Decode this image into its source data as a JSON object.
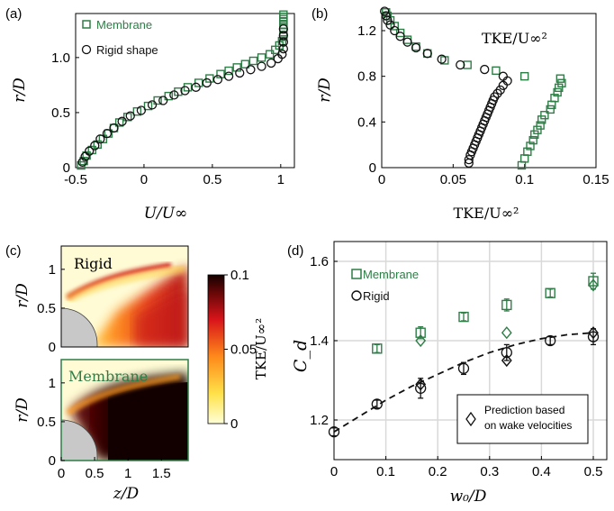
{
  "colors": {
    "membrane": "#2e7d46",
    "rigid": "#111111",
    "grid": "#d9d9d9",
    "wall": "#c8c8c8"
  },
  "chart_data": [
    {
      "panel": "(a)",
      "type": "scatter",
      "xlabel": "U/U∞",
      "ylabel": "r/D",
      "xlim": [
        -0.5,
        1.1
      ],
      "ylim": [
        0,
        1.4
      ],
      "xticks": [
        "-0.5",
        "0",
        "0.5",
        "1"
      ],
      "yticks": [
        "0",
        "0.5",
        "1.0"
      ],
      "legend": "top-left",
      "series": [
        {
          "name": "Membrane",
          "marker": "square",
          "x": [
            -0.46,
            -0.44,
            -0.42,
            -0.38,
            -0.34,
            -0.3,
            -0.26,
            -0.22,
            -0.18,
            -0.12,
            -0.05,
            0.03,
            0.1,
            0.18,
            0.25,
            0.32,
            0.4,
            0.48,
            0.56,
            0.62,
            0.68,
            0.74,
            0.8,
            0.86,
            0.92,
            0.96,
            0.99,
            1.01,
            1.02,
            1.02,
            1.02,
            1.02,
            1.02,
            1.02,
            1.02,
            1.02
          ],
          "y": [
            0.02,
            0.06,
            0.11,
            0.16,
            0.21,
            0.26,
            0.31,
            0.36,
            0.41,
            0.46,
            0.51,
            0.56,
            0.61,
            0.65,
            0.69,
            0.73,
            0.77,
            0.81,
            0.85,
            0.88,
            0.91,
            0.94,
            0.97,
            1.0,
            1.03,
            1.07,
            1.11,
            1.15,
            1.19,
            1.23,
            1.27,
            1.3,
            1.33,
            1.35,
            1.37,
            1.39
          ]
        },
        {
          "name": "Rigid shape",
          "marker": "circle",
          "x": [
            -0.45,
            -0.43,
            -0.4,
            -0.36,
            -0.32,
            -0.27,
            -0.22,
            -0.16,
            -0.1,
            -0.02,
            0.06,
            0.14,
            0.22,
            0.3,
            0.38,
            0.46,
            0.54,
            0.62,
            0.7,
            0.78,
            0.86,
            0.93,
            0.98,
            1.01,
            1.02,
            1.02,
            1.02,
            1.02
          ],
          "y": [
            0.05,
            0.1,
            0.15,
            0.2,
            0.26,
            0.31,
            0.36,
            0.42,
            0.47,
            0.52,
            0.57,
            0.61,
            0.66,
            0.7,
            0.73,
            0.77,
            0.8,
            0.83,
            0.86,
            0.89,
            0.92,
            0.95,
            0.99,
            1.03,
            1.08,
            1.14,
            1.2,
            1.26
          ]
        }
      ]
    },
    {
      "panel": "(b)",
      "type": "scatter",
      "xlabel": "TKE/U∞²",
      "ylabel": "r/D",
      "annotation": "TKE/U∞²",
      "xlim": [
        0,
        0.15
      ],
      "ylim": [
        0,
        1.35
      ],
      "xticks": [
        "0",
        "0.05",
        "0.1",
        "0.15"
      ],
      "yticks": [
        "0",
        "0.4",
        "0.8",
        "1.2"
      ],
      "series": [
        {
          "name": "Membrane",
          "marker": "square",
          "x": [
            0.003,
            0.004,
            0.006,
            0.009,
            0.013,
            0.018,
            0.024,
            0.032,
            0.044,
            0.06,
            0.08,
            0.1,
            0.125,
            0.126,
            0.124,
            0.123,
            0.121,
            0.119,
            0.118,
            0.114,
            0.112,
            0.111,
            0.109,
            0.107,
            0.106,
            0.104,
            0.102,
            0.1,
            0.098
          ],
          "y": [
            1.36,
            1.33,
            1.29,
            1.24,
            1.18,
            1.12,
            1.06,
            1.0,
            0.94,
            0.9,
            0.85,
            0.8,
            0.78,
            0.74,
            0.7,
            0.66,
            0.61,
            0.55,
            0.51,
            0.46,
            0.42,
            0.37,
            0.33,
            0.29,
            0.24,
            0.19,
            0.14,
            0.08,
            0.02
          ]
        },
        {
          "name": "Rigid shape",
          "marker": "circle",
          "x": [
            0.002,
            0.003,
            0.004,
            0.006,
            0.009,
            0.013,
            0.018,
            0.024,
            0.032,
            0.042,
            0.055,
            0.072,
            0.085,
            0.088,
            0.085,
            0.083,
            0.081,
            0.079,
            0.078,
            0.077,
            0.076,
            0.075,
            0.074,
            0.073,
            0.072,
            0.071,
            0.07,
            0.069,
            0.068,
            0.067,
            0.066,
            0.065,
            0.064,
            0.063,
            0.062,
            0.061,
            0.061
          ],
          "y": [
            1.37,
            1.33,
            1.29,
            1.25,
            1.2,
            1.15,
            1.1,
            1.05,
            1.0,
            0.95,
            0.9,
            0.86,
            0.8,
            0.76,
            0.72,
            0.68,
            0.65,
            0.62,
            0.59,
            0.56,
            0.53,
            0.5,
            0.47,
            0.44,
            0.41,
            0.38,
            0.35,
            0.32,
            0.29,
            0.26,
            0.23,
            0.2,
            0.17,
            0.14,
            0.11,
            0.07,
            0.04
          ]
        }
      ]
    },
    {
      "panel": "(c)",
      "type": "heatmap",
      "labels": [
        "Rigid",
        "Membrane"
      ],
      "xlabel": "z/D",
      "ylabel": "r/D",
      "xlim": [
        0,
        1.9
      ],
      "ylim": [
        0,
        1.3
      ],
      "xticks": [
        "0",
        "0.5",
        "1",
        "1.5"
      ],
      "yticks": [
        "0",
        "0.5",
        "1"
      ],
      "colorbar": {
        "label": "TKE/U∞²",
        "range": [
          0,
          0.1
        ],
        "ticks": [
          "0",
          "0.05",
          "0.1"
        ]
      }
    },
    {
      "panel": "(d)",
      "type": "scatter",
      "xlabel": "w₀/D",
      "ylabel": "C_d",
      "xlim": [
        0,
        0.52
      ],
      "ylim": [
        1.1,
        1.65
      ],
      "xticks": [
        "0",
        "0.1",
        "0.2",
        "0.3",
        "0.4",
        "0.5"
      ],
      "yticks": [
        "1.2",
        "1.4",
        "1.6"
      ],
      "grid": true,
      "legend": "top-left",
      "legend_entries": [
        "Membrane",
        "Rigid"
      ],
      "annotation": "Prediction based on wake velocities",
      "series": [
        {
          "name": "Membrane",
          "marker": "square",
          "x": [
            0.083,
            0.167,
            0.25,
            0.333,
            0.417,
            0.5
          ],
          "y": [
            1.38,
            1.42,
            1.46,
            1.49,
            1.52,
            1.55
          ],
          "err": [
            0.01,
            0.015,
            0.01,
            0.015,
            0.01,
            0.02
          ]
        },
        {
          "name": "Rigid",
          "marker": "circle",
          "x": [
            0,
            0.083,
            0.167,
            0.25,
            0.333,
            0.417,
            0.5
          ],
          "y": [
            1.17,
            1.24,
            1.28,
            1.33,
            1.37,
            1.4,
            1.41
          ],
          "err": [
            0.01,
            0.01,
            0.025,
            0.015,
            0.02,
            0.01,
            0.02
          ]
        },
        {
          "name": "Prediction based on wake velocities",
          "marker": "diamond",
          "x": [
            0.167,
            0.167,
            0.333,
            0.333,
            0.5,
            0.5
          ],
          "y": [
            1.4,
            1.29,
            1.42,
            1.35,
            1.54,
            1.42
          ]
        },
        {
          "name": "Rigid fit",
          "type": "line",
          "style": "dashed",
          "x": [
            0,
            0.05,
            0.1,
            0.15,
            0.2,
            0.25,
            0.3,
            0.35,
            0.4,
            0.45,
            0.5
          ],
          "y": [
            1.17,
            1.21,
            1.25,
            1.285,
            1.315,
            1.345,
            1.37,
            1.39,
            1.405,
            1.415,
            1.42
          ]
        }
      ]
    }
  ]
}
